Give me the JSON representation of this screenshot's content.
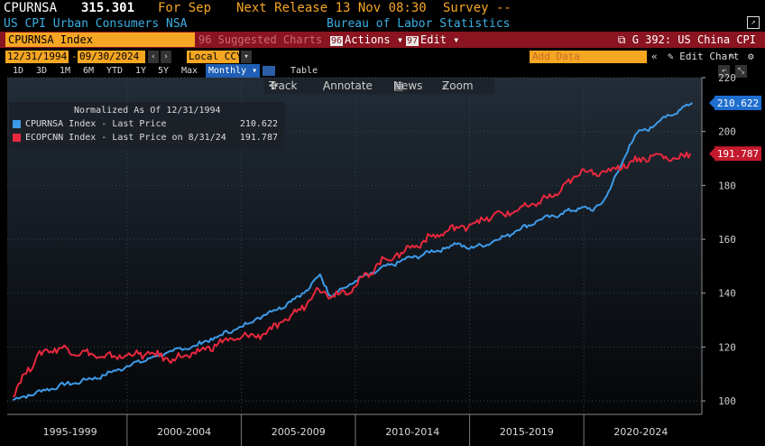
{
  "header": {
    "ticker": "CPURNSA",
    "price": "315.301",
    "for_label": "For Sep",
    "next_release": "Next Release 13 Nov 08:30",
    "survey": "Survey --",
    "description": "US CPI Urban Consumers NSA",
    "source": "Bureau of Labor Statistics"
  },
  "menu_bar": {
    "security": "CPURNSA Index",
    "suggested": "96 Suggested Charts",
    "actions_num": "96",
    "actions": "Actions",
    "edit_num": "97",
    "edit": "Edit",
    "chart_title": "G 392: US China CPI"
  },
  "controls": {
    "start_date": "12/31/1994",
    "end_date": "09/30/2024",
    "currency": "Local CCY",
    "periods": [
      "1D",
      "3D",
      "1M",
      "6M",
      "YTD",
      "1Y",
      "5Y",
      "Max"
    ],
    "frequency": "Monthly",
    "table_label": "Table",
    "add_data": "Add Data",
    "edit_chart": "Edit Chart"
  },
  "toolbar": {
    "track": "Track",
    "annotate": "Annotate",
    "news": "News",
    "zoom": "Zoom"
  },
  "colors": {
    "series1": "#3e9ae8",
    "series2": "#e8283e",
    "accent": "#f5a623",
    "menu_bg": "#8a1420"
  },
  "chart_data": {
    "type": "line",
    "title": "Normalized As Of 12/31/1994",
    "x_labels": [
      "1995-1999",
      "2000-2004",
      "2005-2009",
      "2010-2014",
      "2015-2019",
      "2020-2024"
    ],
    "x_range": [
      "1995-01",
      "2024-09"
    ],
    "ylim": [
      95,
      220
    ],
    "yticks": [
      100,
      120,
      140,
      160,
      180,
      200,
      220
    ],
    "legend_position": "top-left",
    "series": [
      {
        "name": "CPURNSA Index - Last Price",
        "last_value": "210.622",
        "points": [
          [
            1995.0,
            100.3
          ],
          [
            1996.0,
            103.0
          ],
          [
            1997.0,
            105.5
          ],
          [
            1998.0,
            107.3
          ],
          [
            1999.0,
            109.5
          ],
          [
            2000.0,
            113.0
          ],
          [
            2001.0,
            115.8
          ],
          [
            2002.0,
            118.5
          ],
          [
            2003.0,
            120.5
          ],
          [
            2004.0,
            124.0
          ],
          [
            2005.0,
            127.5
          ],
          [
            2006.0,
            132.0
          ],
          [
            2007.0,
            136.0
          ],
          [
            2008.0,
            142.0
          ],
          [
            2008.45,
            147.0
          ],
          [
            2008.9,
            139.0
          ],
          [
            2009.5,
            142.0
          ],
          [
            2010.0,
            144.5
          ],
          [
            2011.0,
            148.5
          ],
          [
            2012.0,
            152.0
          ],
          [
            2013.0,
            154.5
          ],
          [
            2014.0,
            157.0
          ],
          [
            2014.5,
            158.5
          ],
          [
            2015.0,
            156.5
          ],
          [
            2016.0,
            159.0
          ],
          [
            2017.0,
            163.0
          ],
          [
            2018.0,
            167.0
          ],
          [
            2019.0,
            169.5
          ],
          [
            2020.0,
            172.0
          ],
          [
            2020.4,
            170.5
          ],
          [
            2021.0,
            176.0
          ],
          [
            2021.5,
            185.0
          ],
          [
            2022.0,
            195.0
          ],
          [
            2022.5,
            200.5
          ],
          [
            2023.0,
            201.5
          ],
          [
            2023.5,
            205.5
          ],
          [
            2024.0,
            206.5
          ],
          [
            2024.5,
            210.0
          ],
          [
            2024.75,
            210.6
          ]
        ]
      },
      {
        "name": "ECOPCNN Index - Last Price on 8/31/24",
        "last_value": "191.787",
        "points": [
          [
            1995.0,
            101.5
          ],
          [
            1995.5,
            110.0
          ],
          [
            1996.0,
            115.5
          ],
          [
            1996.5,
            119.0
          ],
          [
            1997.0,
            119.5
          ],
          [
            1998.0,
            118.0
          ],
          [
            1999.0,
            116.0
          ],
          [
            2000.0,
            117.0
          ],
          [
            2001.0,
            117.5
          ],
          [
            2002.0,
            115.5
          ],
          [
            2003.0,
            117.5
          ],
          [
            2004.0,
            121.5
          ],
          [
            2005.0,
            123.5
          ],
          [
            2006.0,
            125.0
          ],
          [
            2007.0,
            130.0
          ],
          [
            2008.0,
            137.5
          ],
          [
            2008.3,
            142.0
          ],
          [
            2009.0,
            139.0
          ],
          [
            2010.0,
            142.5
          ],
          [
            2011.0,
            151.0
          ],
          [
            2012.0,
            155.0
          ],
          [
            2013.0,
            159.5
          ],
          [
            2014.0,
            163.0
          ],
          [
            2015.0,
            165.5
          ],
          [
            2016.0,
            168.5
          ],
          [
            2017.0,
            170.5
          ],
          [
            2018.0,
            173.5
          ],
          [
            2019.0,
            178.0
          ],
          [
            2020.0,
            186.0
          ],
          [
            2020.5,
            184.5
          ],
          [
            2021.0,
            185.0
          ],
          [
            2022.0,
            188.5
          ],
          [
            2023.0,
            191.0
          ],
          [
            2024.0,
            190.0
          ],
          [
            2024.67,
            191.8
          ]
        ]
      }
    ]
  }
}
